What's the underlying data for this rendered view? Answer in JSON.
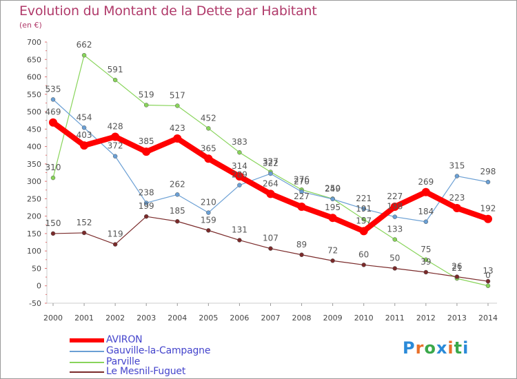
{
  "title": "Evolution du Montant de la Dette par Habitant",
  "subtitle": "(en €)",
  "brand": {
    "text": "Proxiti",
    "letters": [
      "P",
      "r",
      "o",
      "x",
      "i",
      "t",
      "i"
    ],
    "colors": [
      "#2a8ad8",
      "#e8702a",
      "#3aa84a",
      "#2a8ad8",
      "#e8702a",
      "#3aa84a",
      "#2a8ad8"
    ]
  },
  "chart_data": {
    "type": "line",
    "title": "Evolution du Montant de la Dette par Habitant",
    "ylabel": "(en €)",
    "xlabel": "",
    "x": [
      "2000",
      "2001",
      "2002",
      "2003",
      "2004",
      "2005",
      "2006",
      "2007",
      "2008",
      "2009",
      "2010",
      "2011",
      "2012",
      "2013",
      "2014"
    ],
    "ylim": [
      -50,
      700
    ],
    "yticks": [
      -50,
      0,
      50,
      100,
      150,
      200,
      250,
      300,
      350,
      400,
      450,
      500,
      550,
      600,
      650,
      700
    ],
    "grid": false,
    "legend_position": "bottom-left",
    "series": [
      {
        "name": "AVIRON",
        "color": "#ff0000",
        "values": [
          469,
          403,
          428,
          385,
          423,
          365,
          314,
          264,
          227,
          195,
          157,
          227,
          269,
          223,
          192
        ]
      },
      {
        "name": "Gauville-la-Campagne",
        "color": "#6a9fd4",
        "values": [
          535,
          454,
          372,
          238,
          262,
          210,
          289,
          322,
          270,
          249,
          221,
          198,
          184,
          315,
          298
        ]
      },
      {
        "name": "Parville",
        "color": "#88d45a",
        "values": [
          310,
          662,
          591,
          519,
          517,
          452,
          383,
          327,
          276,
          250,
          191,
          133,
          75,
          21,
          0
        ]
      },
      {
        "name": "Le Mesnil-Fuguet",
        "color": "#7a2a2a",
        "values": [
          150,
          152,
          119,
          199,
          185,
          159,
          131,
          107,
          89,
          72,
          60,
          50,
          39,
          26,
          13
        ]
      }
    ]
  }
}
